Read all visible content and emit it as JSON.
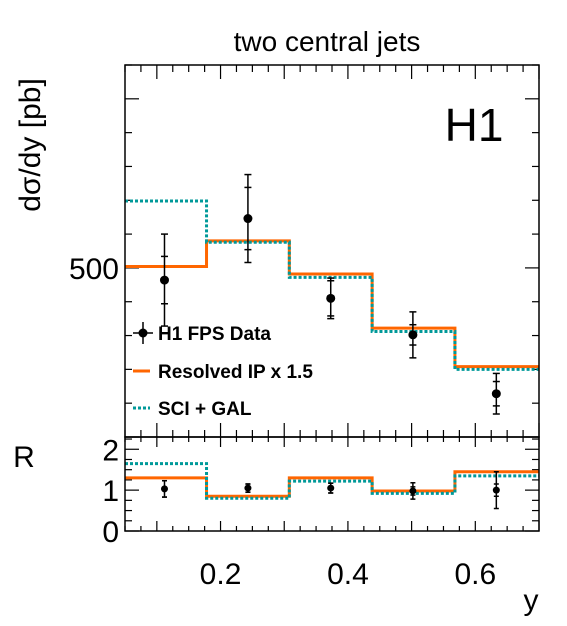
{
  "chart_data": [
    {
      "type": "line",
      "title": "two central jets",
      "ylabel": "dσ/dy [pb]",
      "logo": "H1",
      "xlim": [
        0.05,
        0.7
      ],
      "ylim": [
        250,
        800
      ],
      "ytick_labels": [
        {
          "value": 500,
          "label": "500"
        }
      ],
      "grid": false,
      "legend": {
        "placement": "bottom-left",
        "entries": [
          {
            "label": "H1 FPS Data",
            "style": "marker"
          },
          {
            "label": "Resolved IP x 1.5",
            "style": "solid",
            "color": "#ff6600"
          },
          {
            "label": "SCI + GAL",
            "style": "dotted",
            "color": "#009999"
          }
        ]
      },
      "data": {
        "name": "H1 FPS Data",
        "x": [
          0.112,
          0.243,
          0.373,
          0.502,
          0.633
        ],
        "y": [
          482,
          573,
          455,
          401,
          314
        ],
        "stat_err": [
          35,
          46,
          26,
          15,
          18
        ],
        "tot_err": [
          68,
          65,
          30,
          34,
          30
        ]
      },
      "series": [
        {
          "name": "Resolved IP x 1.5",
          "color": "#ff6600",
          "style": "solid",
          "bin_edges": [
            0.05,
            0.178,
            0.308,
            0.438,
            0.568,
            0.7
          ],
          "values": [
            502,
            540,
            491,
            411,
            354
          ]
        },
        {
          "name": "SCI + GAL",
          "color": "#009999",
          "style": "dotted",
          "bin_edges": [
            0.05,
            0.178,
            0.308,
            0.438,
            0.568,
            0.7
          ],
          "values": [
            599,
            538,
            486,
            406,
            350
          ]
        }
      ]
    },
    {
      "type": "line",
      "ylabel": "R",
      "xlabel": "y",
      "xlim": [
        0.05,
        0.7
      ],
      "ylim": [
        0,
        2.3
      ],
      "ytick_labels": [
        {
          "value": 0,
          "label": "0"
        },
        {
          "value": 1,
          "label": "1"
        },
        {
          "value": 2,
          "label": "2"
        }
      ],
      "xtick_labels": [
        {
          "value": 0.2,
          "label": "0.2"
        },
        {
          "value": 0.4,
          "label": "0.4"
        },
        {
          "value": 0.6,
          "label": "0.6"
        }
      ],
      "data": {
        "x": [
          0.112,
          0.243,
          0.373,
          0.502,
          0.633
        ],
        "y": [
          1.03,
          1.05,
          1.05,
          0.98,
          1.0
        ],
        "stat_err": [
          0.2,
          0.1,
          0.12,
          0.1,
          0.15
        ],
        "tot_err": [
          0.2,
          0.1,
          0.12,
          0.2,
          0.45
        ]
      },
      "series": [
        {
          "name": "Resolved IP x 1.5",
          "color": "#ff6600",
          "style": "solid",
          "bin_edges": [
            0.05,
            0.178,
            0.308,
            0.438,
            0.568,
            0.7
          ],
          "values": [
            1.3,
            0.85,
            1.3,
            0.98,
            1.45
          ]
        },
        {
          "name": "SCI + GAL",
          "color": "#009999",
          "style": "dotted",
          "bin_edges": [
            0.05,
            0.178,
            0.308,
            0.438,
            0.568,
            0.7
          ],
          "values": [
            1.65,
            0.8,
            1.22,
            0.92,
            1.35
          ]
        }
      ]
    }
  ]
}
